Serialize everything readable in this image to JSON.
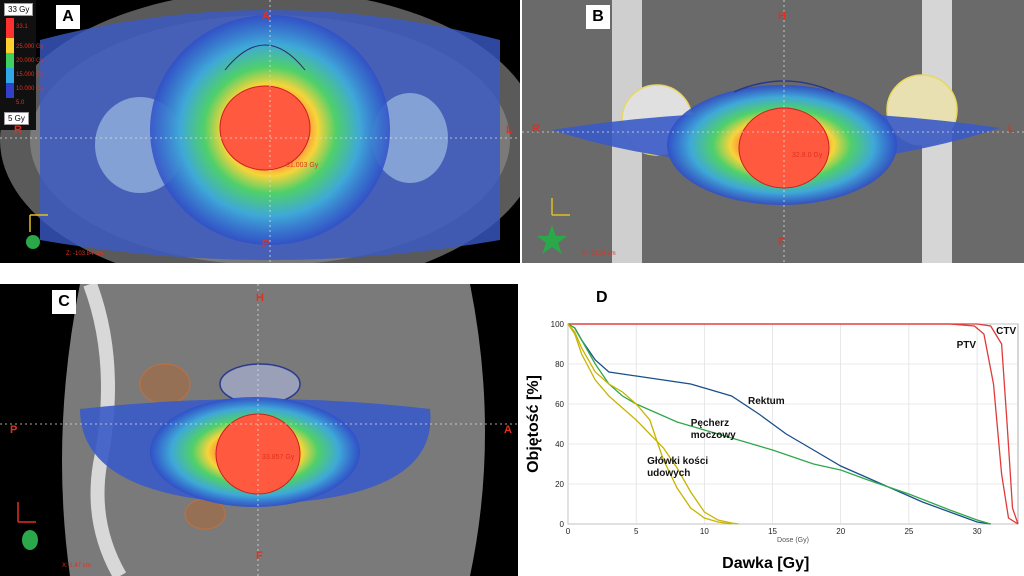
{
  "panels": {
    "a": {
      "letter": "A",
      "orient_top": "A",
      "orient_bottom": "P",
      "orient_left": "R",
      "orient_right": "L",
      "legend_max": "33 Gy",
      "legend_min": "5 Gy",
      "scale_values": [
        "33.1",
        "25.000 Gy",
        "20.000 Gy",
        "15.000 Gy",
        "10.000 Gy",
        "5.0"
      ],
      "dose_label": "31.003 Gy",
      "coord": "Z: -103.84 cm"
    },
    "b": {
      "letter": "B",
      "orient_top": "H",
      "orient_bottom": "F",
      "orient_left": "R",
      "orient_right": "L",
      "dose_label": "32.8.0 Gy",
      "coord": "Y: -22.03 cm"
    },
    "c": {
      "letter": "C",
      "orient_top": "H",
      "orient_bottom": "F",
      "orient_left": "P",
      "orient_right": "A",
      "dose_label": "33.857 Gy",
      "coord": "X: 1.47 cm"
    }
  },
  "chart_data": {
    "type": "line",
    "panel_letter": "D",
    "xlabel": "Dawka  [Gy]",
    "xlabel_small": "Dose (Gy)",
    "ylabel": "Objętość  [%]",
    "xlim": [
      0,
      33
    ],
    "ylim": [
      0,
      100
    ],
    "x_ticks": [
      "0",
      "5",
      "10",
      "15",
      "20",
      "25",
      "30"
    ],
    "y_ticks": [
      "0",
      "20",
      "40",
      "60",
      "80",
      "100"
    ],
    "annotations": [
      "PTV",
      "CTV",
      "Rektum",
      "Pęcherz\nmoczowy",
      "Główki kości\nudowych"
    ],
    "series": [
      {
        "name": "CTV",
        "color": "#e03a3a",
        "x": [
          0,
          28,
          30,
          31,
          31.8,
          32.2,
          32.6,
          33
        ],
        "y": [
          100,
          100,
          100,
          99,
          90,
          50,
          8,
          0
        ]
      },
      {
        "name": "PTV",
        "color": "#e03a3a",
        "x": [
          0,
          28,
          29.8,
          30.5,
          31.2,
          31.8,
          32.3,
          33
        ],
        "y": [
          100,
          100,
          99,
          95,
          70,
          25,
          3,
          0
        ]
      },
      {
        "name": "Rektum",
        "color": "#1a4f8a",
        "x": [
          0,
          0.5,
          1,
          2,
          3,
          5,
          7,
          9,
          10,
          11,
          12,
          14,
          16,
          18,
          20,
          22,
          24,
          26,
          28,
          30,
          31
        ],
        "y": [
          100,
          98,
          92,
          82,
          76,
          74,
          72,
          70,
          68,
          66,
          64,
          55,
          45,
          37,
          29,
          23,
          17,
          11,
          6,
          1,
          0
        ]
      },
      {
        "name": "Pęcherz moczowy",
        "color": "#2fa84a",
        "x": [
          0,
          0.5,
          1,
          2,
          3,
          4,
          5,
          6,
          7,
          8,
          10,
          12,
          15,
          18,
          20,
          22,
          25,
          28,
          30,
          31
        ],
        "y": [
          100,
          98,
          92,
          80,
          70,
          64,
          60,
          57,
          54,
          51,
          47,
          43,
          37,
          30,
          27,
          22,
          15,
          7,
          2,
          0
        ]
      },
      {
        "name": "Główki kości udowych",
        "color": "#c8b400",
        "x": [
          0,
          0.5,
          1,
          2,
          3,
          4,
          5,
          6,
          6.5,
          7,
          8,
          9,
          10,
          11,
          12
        ],
        "y": [
          100,
          96,
          88,
          76,
          70,
          66,
          60,
          52,
          42,
          32,
          18,
          8,
          3,
          1,
          0
        ]
      },
      {
        "name": "Główki kości udowych 2",
        "color": "#c8b400",
        "x": [
          0,
          0.5,
          1,
          2,
          3,
          4,
          5,
          6,
          7,
          8,
          9,
          10,
          11,
          12,
          12.5
        ],
        "y": [
          100,
          95,
          85,
          72,
          64,
          58,
          52,
          45,
          38,
          28,
          16,
          6,
          2,
          0.5,
          0
        ]
      }
    ]
  }
}
